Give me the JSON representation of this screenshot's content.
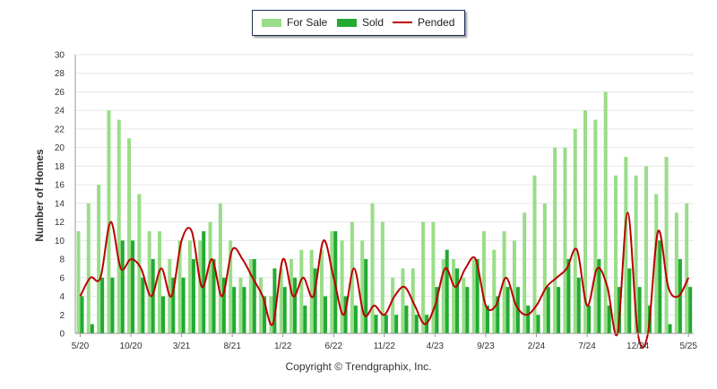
{
  "chart_data": {
    "type": "bar",
    "ylabel": "Number of Homes",
    "xlabel": "",
    "ylim": [
      0,
      30
    ],
    "yticks": [
      0,
      2,
      4,
      6,
      8,
      10,
      12,
      14,
      16,
      18,
      20,
      22,
      24,
      26,
      28,
      30
    ],
    "grid": true,
    "legend_position": "top-center",
    "tick_labels": [
      "5/20",
      "10/20",
      "3/21",
      "8/21",
      "1/22",
      "6/22",
      "11/22",
      "4/23",
      "9/23",
      "2/24",
      "7/24",
      "12/24",
      "5/25"
    ],
    "tick_every": 5,
    "categories": [
      "5/20",
      "6/20",
      "7/20",
      "8/20",
      "9/20",
      "10/20",
      "11/20",
      "12/20",
      "1/21",
      "2/21",
      "3/21",
      "4/21",
      "5/21",
      "6/21",
      "7/21",
      "8/21",
      "9/21",
      "10/21",
      "11/21",
      "12/21",
      "1/22",
      "2/22",
      "3/22",
      "4/22",
      "5/22",
      "6/22",
      "7/22",
      "8/22",
      "9/22",
      "10/22",
      "11/22",
      "12/22",
      "1/23",
      "2/23",
      "3/23",
      "4/23",
      "5/23",
      "6/23",
      "7/23",
      "8/23",
      "9/23",
      "10/23",
      "11/23",
      "12/23",
      "1/24",
      "2/24",
      "3/24",
      "4/24",
      "5/24",
      "6/24",
      "7/24",
      "8/24",
      "9/24",
      "10/24",
      "11/24",
      "12/24",
      "1/25",
      "2/25",
      "3/25",
      "4/25",
      "5/25"
    ],
    "series": [
      {
        "name": "For Sale",
        "type": "bar",
        "color": "#99dd88",
        "values": [
          11,
          14,
          16,
          24,
          23,
          21,
          15,
          11,
          11,
          8,
          10,
          10,
          10,
          12,
          14,
          10,
          6,
          8,
          6,
          4,
          7,
          8,
          9,
          9,
          9,
          11,
          10,
          12,
          10,
          14,
          12,
          6,
          7,
          7,
          12,
          12,
          8,
          8,
          6,
          8,
          11,
          9,
          11,
          10,
          13,
          17,
          14,
          20,
          20,
          22,
          24,
          23,
          26,
          17,
          19,
          17,
          18,
          15,
          19,
          13,
          14
        ]
      },
      {
        "name": "Sold",
        "type": "bar",
        "color": "#22aa33",
        "values": [
          4,
          1,
          6,
          6,
          10,
          10,
          6,
          8,
          4,
          6,
          6,
          8,
          11,
          8,
          6,
          5,
          5,
          8,
          4,
          7,
          5,
          6,
          3,
          7,
          4,
          11,
          4,
          3,
          8,
          2,
          2,
          2,
          3,
          2,
          2,
          5,
          9,
          7,
          5,
          8,
          3,
          4,
          5,
          5,
          3,
          2,
          5,
          5,
          8,
          6,
          3,
          8,
          3,
          5,
          7,
          5,
          3,
          10,
          1,
          8,
          5
        ]
      },
      {
        "name": "Pended",
        "type": "line",
        "color": "#bb0000",
        "values": [
          4,
          6,
          6,
          12,
          7,
          8,
          7,
          4,
          7,
          4,
          10,
          11,
          5,
          8,
          4,
          9,
          8,
          6,
          4,
          1,
          8,
          4,
          6,
          4,
          10,
          6,
          2,
          7,
          2,
          3,
          2,
          4,
          5,
          3,
          1,
          3,
          7,
          5,
          7,
          8,
          3,
          3,
          6,
          3,
          2,
          3,
          5,
          6,
          7,
          9,
          3,
          7,
          5,
          0,
          13,
          0,
          0,
          11,
          5,
          4,
          6
        ]
      }
    ],
    "copyright": "Copyright © Trendgraphix, Inc."
  },
  "legend": {
    "for_sale": "For Sale",
    "sold": "Sold",
    "pended": "Pended"
  },
  "colors": {
    "for_sale": "#99dd88",
    "sold": "#22aa33",
    "pended": "#bb0000",
    "grid": "#e6e6e6",
    "axis": "#999999"
  }
}
